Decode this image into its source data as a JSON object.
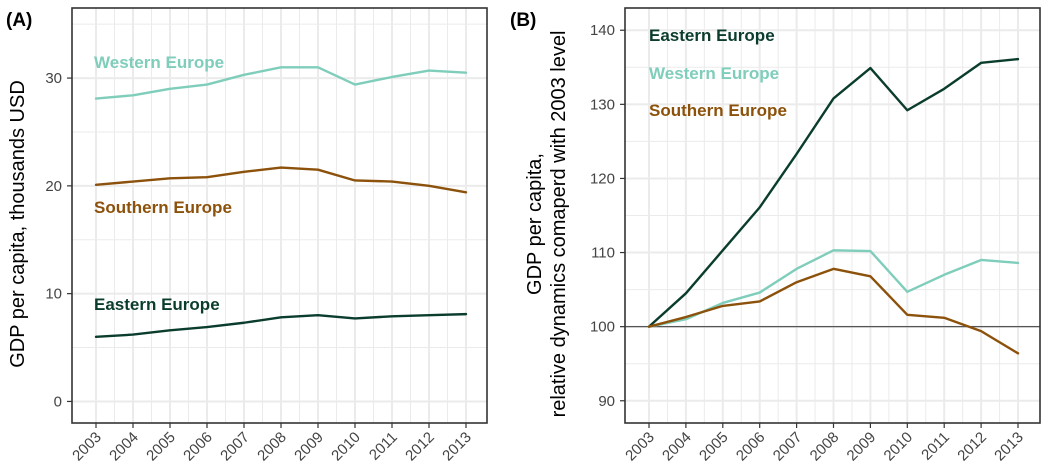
{
  "colors": {
    "eastern": "#0b3d2e",
    "western": "#7fcdbb",
    "southern": "#8c510a",
    "grid": "#ebebeb",
    "frame": "#333333",
    "baseline": "#555555"
  },
  "chart_data": [
    {
      "type": "line",
      "panel_label": "(A)",
      "ylabel": "GDP per capita, thousands USD",
      "x": [
        "2003",
        "2004",
        "2005",
        "2006",
        "2007",
        "2008",
        "2009",
        "2010",
        "2011",
        "2012",
        "2013"
      ],
      "ylim": [
        -2,
        36.5
      ],
      "yticks": [
        0,
        10,
        20,
        30
      ],
      "grid": true,
      "series": [
        {
          "name": "Western Europe",
          "color_key": "western",
          "values": [
            28.1,
            28.4,
            29.0,
            29.4,
            30.3,
            31.0,
            31.0,
            29.4,
            30.1,
            30.7,
            30.5
          ]
        },
        {
          "name": "Southern Europe",
          "color_key": "southern",
          "values": [
            20.1,
            20.4,
            20.7,
            20.8,
            21.3,
            21.7,
            21.5,
            20.5,
            20.4,
            20.0,
            19.4
          ]
        },
        {
          "name": "Eastern Europe",
          "color_key": "eastern",
          "values": [
            6.0,
            6.2,
            6.6,
            6.9,
            7.3,
            7.8,
            8.0,
            7.7,
            7.9,
            8.0,
            8.1
          ]
        }
      ],
      "series_label_order": [
        "Western Europe",
        "Southern Europe",
        "Eastern Europe"
      ]
    },
    {
      "type": "line",
      "panel_label": "(B)",
      "ylabel_lines": [
        "GDP per capita,",
        "relative dynamics comaperd with 2003 level"
      ],
      "x": [
        "2003",
        "2004",
        "2005",
        "2006",
        "2007",
        "2008",
        "2009",
        "2010",
        "2011",
        "2012",
        "2013"
      ],
      "ylim": [
        87,
        143
      ],
      "yticks": [
        90,
        100,
        110,
        120,
        130,
        140
      ],
      "reference_line": 100,
      "grid": true,
      "series": [
        {
          "name": "Eastern Europe",
          "color_key": "eastern",
          "values": [
            100.0,
            104.5,
            110.3,
            116.1,
            123.3,
            130.8,
            134.9,
            129.2,
            132.1,
            135.6,
            136.1
          ]
        },
        {
          "name": "Western Europe",
          "color_key": "western",
          "values": [
            100.0,
            101.0,
            103.2,
            104.6,
            107.8,
            110.3,
            110.2,
            104.7,
            107.0,
            109.0,
            108.6
          ]
        },
        {
          "name": "Southern Europe",
          "color_key": "southern",
          "values": [
            100.0,
            101.3,
            102.8,
            103.4,
            106.0,
            107.8,
            106.8,
            101.6,
            101.2,
            99.4,
            96.4
          ]
        }
      ],
      "series_label_order": [
        "Eastern Europe",
        "Western Europe",
        "Southern Europe"
      ]
    }
  ]
}
